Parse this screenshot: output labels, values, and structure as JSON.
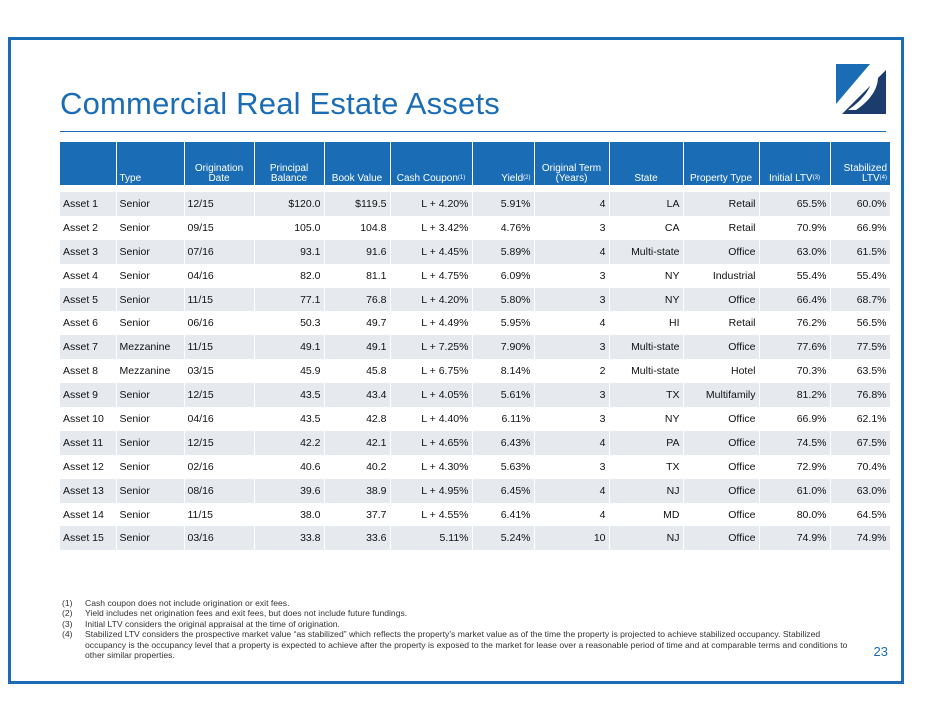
{
  "page": {
    "title": "Commercial Real Estate Assets",
    "page_number": "23"
  },
  "colors": {
    "brand": "#1a6db5",
    "dark_navy": "#1c3c6e",
    "stripe": "#e6e9ee"
  },
  "table": {
    "headers": {
      "asset": "",
      "type": "Type",
      "orig_date": "Origination Date",
      "principal": "Principal Balance",
      "book": "Book Value",
      "coupon": "Cash Coupon",
      "coupon_ref": "(1)",
      "yield": "Yield",
      "yield_ref": "(2)",
      "term": "Original Term (Years)",
      "state": "State",
      "ptype": "Property Type",
      "iltv": "Initial LTV",
      "iltv_ref": "(3)",
      "sltv": "Stabilized LTV",
      "sltv_ref": "(4)"
    },
    "rows": [
      {
        "asset": "Asset 1",
        "type": "Senior",
        "date": "12/15",
        "principal": "$120.0",
        "book": "$119.5",
        "coupon": "L + 4.20%",
        "yield": "5.91%",
        "term": "4",
        "state": "LA",
        "ptype": "Retail",
        "iltv": "65.5%",
        "sltv": "60.0%"
      },
      {
        "asset": "Asset 2",
        "type": "Senior",
        "date": "09/15",
        "principal": "105.0",
        "book": "104.8",
        "coupon": "L + 3.42%",
        "yield": "4.76%",
        "term": "3",
        "state": "CA",
        "ptype": "Retail",
        "iltv": "70.9%",
        "sltv": "66.9%"
      },
      {
        "asset": "Asset 3",
        "type": "Senior",
        "date": "07/16",
        "principal": "93.1",
        "book": "91.6",
        "coupon": "L + 4.45%",
        "yield": "5.89%",
        "term": "4",
        "state": "Multi-state",
        "ptype": "Office",
        "iltv": "63.0%",
        "sltv": "61.5%"
      },
      {
        "asset": "Asset 4",
        "type": "Senior",
        "date": "04/16",
        "principal": "82.0",
        "book": "81.1",
        "coupon": "L + 4.75%",
        "yield": "6.09%",
        "term": "3",
        "state": "NY",
        "ptype": "Industrial",
        "iltv": "55.4%",
        "sltv": "55.4%"
      },
      {
        "asset": "Asset 5",
        "type": "Senior",
        "date": "11/15",
        "principal": "77.1",
        "book": "76.8",
        "coupon": "L + 4.20%",
        "yield": "5.80%",
        "term": "3",
        "state": "NY",
        "ptype": "Office",
        "iltv": "66.4%",
        "sltv": "68.7%"
      },
      {
        "asset": "Asset 6",
        "type": "Senior",
        "date": "06/16",
        "principal": "50.3",
        "book": "49.7",
        "coupon": "L + 4.49%",
        "yield": "5.95%",
        "term": "4",
        "state": "HI",
        "ptype": "Retail",
        "iltv": "76.2%",
        "sltv": "56.5%"
      },
      {
        "asset": "Asset 7",
        "type": "Mezzanine",
        "date": "11/15",
        "principal": "49.1",
        "book": "49.1",
        "coupon": "L + 7.25%",
        "yield": "7.90%",
        "term": "3",
        "state": "Multi-state",
        "ptype": "Office",
        "iltv": "77.6%",
        "sltv": "77.5%"
      },
      {
        "asset": "Asset 8",
        "type": "Mezzanine",
        "date": "03/15",
        "principal": "45.9",
        "book": "45.8",
        "coupon": "L + 6.75%",
        "yield": "8.14%",
        "term": "2",
        "state": "Multi-state",
        "ptype": "Hotel",
        "iltv": "70.3%",
        "sltv": "63.5%"
      },
      {
        "asset": "Asset 9",
        "type": "Senior",
        "date": "12/15",
        "principal": "43.5",
        "book": "43.4",
        "coupon": "L + 4.05%",
        "yield": "5.61%",
        "term": "3",
        "state": "TX",
        "ptype": "Multifamily",
        "iltv": "81.2%",
        "sltv": "76.8%"
      },
      {
        "asset": "Asset 10",
        "type": "Senior",
        "date": "04/16",
        "principal": "43.5",
        "book": "42.8",
        "coupon": "L + 4.40%",
        "yield": "6.11%",
        "term": "3",
        "state": "NY",
        "ptype": "Office",
        "iltv": "66.9%",
        "sltv": "62.1%"
      },
      {
        "asset": "Asset 11",
        "type": "Senior",
        "date": "12/15",
        "principal": "42.2",
        "book": "42.1",
        "coupon": "L + 4.65%",
        "yield": "6.43%",
        "term": "4",
        "state": "PA",
        "ptype": "Office",
        "iltv": "74.5%",
        "sltv": "67.5%"
      },
      {
        "asset": "Asset 12",
        "type": "Senior",
        "date": "02/16",
        "principal": "40.6",
        "book": "40.2",
        "coupon": "L + 4.30%",
        "yield": "5.63%",
        "term": "3",
        "state": "TX",
        "ptype": "Office",
        "iltv": "72.9%",
        "sltv": "70.4%"
      },
      {
        "asset": "Asset 13",
        "type": "Senior",
        "date": "08/16",
        "principal": "39.6",
        "book": "38.9",
        "coupon": "L + 4.95%",
        "yield": "6.45%",
        "term": "4",
        "state": "NJ",
        "ptype": "Office",
        "iltv": "61.0%",
        "sltv": "63.0%"
      },
      {
        "asset": "Asset 14",
        "type": "Senior",
        "date": "11/15",
        "principal": "38.0",
        "book": "37.7",
        "coupon": "L + 4.55%",
        "yield": "6.41%",
        "term": "4",
        "state": "MD",
        "ptype": "Office",
        "iltv": "80.0%",
        "sltv": "64.5%"
      },
      {
        "asset": "Asset 15",
        "type": "Senior",
        "date": "03/16",
        "principal": "33.8",
        "book": "33.6",
        "coupon": "5.11%",
        "yield": "5.24%",
        "term": "10",
        "state": "NJ",
        "ptype": "Office",
        "iltv": "74.9%",
        "sltv": "74.9%"
      }
    ]
  },
  "footnotes": [
    {
      "num": "(1)",
      "text": "Cash coupon does not include origination or exit fees."
    },
    {
      "num": "(2)",
      "text": "Yield includes net origination fees and exit fees, but does not include future fundings."
    },
    {
      "num": "(3)",
      "text": "Initial LTV considers the original appraisal at the time of origination."
    },
    {
      "num": "(4)",
      "text": "Stabilized LTV considers the prospective market value “as stabilized” which reflects the property’s market value as of the time the property is projected to achieve stabilized occupancy. Stabilized occupancy is the occupancy level that a property is expected to achieve after the property is exposed to the market for lease over a reasonable period of time and at comparable terms and conditions to other similar properties."
    }
  ]
}
